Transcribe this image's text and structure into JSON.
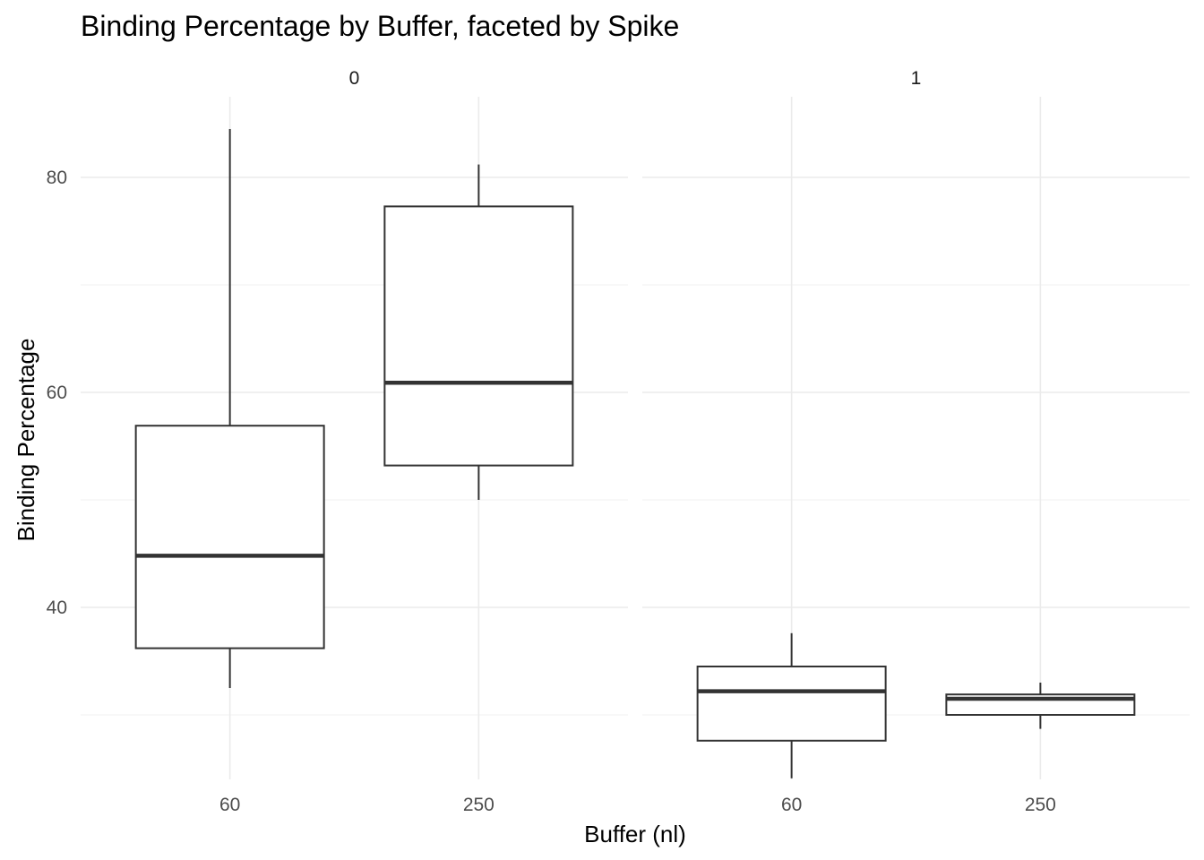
{
  "chart_data": {
    "type": "box",
    "title": "Binding Percentage by Buffer, faceted by Spike",
    "xlabel": "Buffer (nl)",
    "ylabel": "Binding Percentage",
    "categories": [
      "60",
      "250"
    ],
    "y_ticks": [
      40,
      60,
      80
    ],
    "ylim": [
      24,
      87.5
    ],
    "grid": true,
    "facets": [
      {
        "label": "0",
        "boxes": [
          {
            "category": "60",
            "min": 32.5,
            "q1": 36.2,
            "median": 44.8,
            "q3": 56.9,
            "max": 84.5
          },
          {
            "category": "250",
            "min": 50.0,
            "q1": 53.2,
            "median": 60.9,
            "q3": 77.3,
            "max": 81.2
          }
        ]
      },
      {
        "label": "1",
        "boxes": [
          {
            "category": "60",
            "min": 24.1,
            "q1": 27.6,
            "median": 32.2,
            "q3": 34.5,
            "max": 37.6
          },
          {
            "category": "250",
            "min": 28.7,
            "q1": 30.0,
            "median": 31.5,
            "q3": 31.9,
            "max": 33.0
          }
        ]
      }
    ]
  }
}
